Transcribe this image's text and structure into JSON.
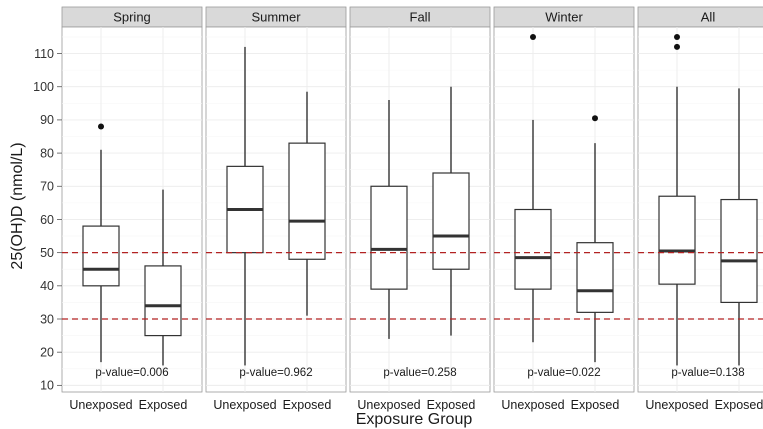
{
  "chart_data": {
    "type": "boxplot",
    "xlabel": "Exposure Group",
    "ylabel": "25(OH)D (nmol/L)",
    "ylim": [
      8,
      118
    ],
    "yticks": [
      10,
      20,
      30,
      40,
      50,
      60,
      70,
      80,
      90,
      100,
      110
    ],
    "reference_lines": [
      30,
      50
    ],
    "reference_line_color": "#b22222",
    "grid": true,
    "categories": [
      "Unexposed",
      "Exposed"
    ],
    "panels": [
      {
        "name": "Spring",
        "p_value_text": "p-value=0.006",
        "boxes": [
          {
            "group": "Unexposed",
            "whisker_low": 17,
            "q1": 40,
            "median": 45,
            "q3": 58,
            "whisker_high": 81,
            "outliers": [
              88
            ]
          },
          {
            "group": "Exposed",
            "whisker_low": 16,
            "q1": 25,
            "median": 34,
            "q3": 46,
            "whisker_high": 69,
            "outliers": []
          }
        ]
      },
      {
        "name": "Summer",
        "p_value_text": "p-value=0.962",
        "boxes": [
          {
            "group": "Unexposed",
            "whisker_low": 16,
            "q1": 50,
            "median": 63,
            "q3": 76,
            "whisker_high": 112,
            "outliers": []
          },
          {
            "group": "Exposed",
            "whisker_low": 31,
            "q1": 48,
            "median": 59.5,
            "q3": 83,
            "whisker_high": 98.5,
            "outliers": []
          }
        ]
      },
      {
        "name": "Fall",
        "p_value_text": "p-value=0.258",
        "boxes": [
          {
            "group": "Unexposed",
            "whisker_low": 24,
            "q1": 39,
            "median": 51,
            "q3": 70,
            "whisker_high": 96,
            "outliers": []
          },
          {
            "group": "Exposed",
            "whisker_low": 25,
            "q1": 45,
            "median": 55,
            "q3": 74,
            "whisker_high": 100,
            "outliers": []
          }
        ]
      },
      {
        "name": "Winter",
        "p_value_text": "p-value=0.022",
        "boxes": [
          {
            "group": "Unexposed",
            "whisker_low": 23,
            "q1": 39,
            "median": 48.5,
            "q3": 63,
            "whisker_high": 90,
            "outliers": [
              115
            ]
          },
          {
            "group": "Exposed",
            "whisker_low": 17,
            "q1": 32,
            "median": 38.5,
            "q3": 53,
            "whisker_high": 83,
            "outliers": [
              90.5
            ]
          }
        ]
      },
      {
        "name": "All",
        "p_value_text": "p-value=0.138",
        "boxes": [
          {
            "group": "Unexposed",
            "whisker_low": 16,
            "q1": 40.5,
            "median": 50.5,
            "q3": 67,
            "whisker_high": 100,
            "outliers": [
              112,
              115
            ]
          },
          {
            "group": "Exposed",
            "whisker_low": 16,
            "q1": 35,
            "median": 47.5,
            "q3": 66,
            "whisker_high": 99.5,
            "outliers": []
          }
        ]
      }
    ]
  }
}
